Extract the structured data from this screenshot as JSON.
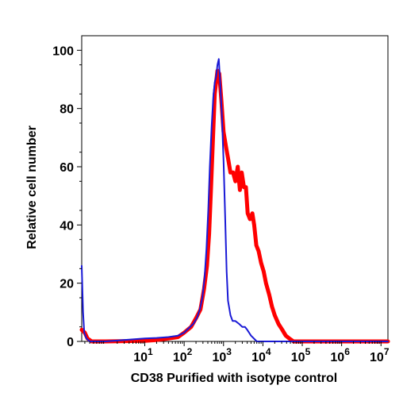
{
  "chart_data": {
    "type": "line",
    "title": "",
    "xlabel": "CD38 Purified with isotype control",
    "ylabel": "Relative cell number",
    "x_scale": "log",
    "xlim": [
      0.25,
      15000000
    ],
    "ylim": [
      0,
      105
    ],
    "y_ticks": [
      0,
      20,
      40,
      60,
      80,
      100
    ],
    "y_tick_labels": [
      "0",
      "20",
      "40",
      "60",
      "80",
      "100"
    ],
    "x_ticks": [
      10,
      100,
      1000,
      10000,
      100000,
      1000000,
      10000000
    ],
    "x_tick_labels": [
      {
        "base": "10",
        "exp": "1"
      },
      {
        "base": "10",
        "exp": "2"
      },
      {
        "base": "10",
        "exp": "3"
      },
      {
        "base": "10",
        "exp": "4"
      },
      {
        "base": "10",
        "exp": "5"
      },
      {
        "base": "10",
        "exp": "6"
      },
      {
        "base": "10",
        "exp": "7"
      }
    ],
    "grid": false,
    "legend": null,
    "series": [
      {
        "color": "#ff0000",
        "style": "thick",
        "x": [
          0.25,
          0.3,
          0.35,
          0.45,
          1,
          10,
          20,
          40,
          70,
          100,
          150,
          200,
          260,
          320,
          380,
          430,
          480,
          540,
          600,
          700,
          780,
          880,
          1000,
          1150,
          1300,
          1500,
          1750,
          2000,
          2300,
          2600,
          2900,
          3300,
          3700,
          4100,
          4700,
          5400,
          6000,
          6800,
          7800,
          9000,
          10500,
          12000,
          14500,
          17000,
          20000,
          25000,
          31000,
          38000,
          47000,
          60000,
          100000,
          1000000,
          15000000
        ],
        "y": [
          4,
          3,
          1,
          0,
          0,
          0.2,
          0.5,
          1,
          1.5,
          3,
          5,
          8,
          11,
          18,
          26,
          37,
          52,
          70,
          85,
          93,
          92,
          83,
          72,
          67,
          63,
          58,
          58,
          55,
          60,
          52,
          58,
          53,
          53,
          44,
          42,
          44,
          40,
          33,
          31,
          27,
          24,
          20,
          16,
          12,
          9,
          6,
          4,
          2,
          1,
          0,
          0,
          0,
          0
        ]
      },
      {
        "color": "#1a1ad6",
        "style": "thin",
        "x": [
          0.25,
          0.27,
          0.29,
          0.33,
          0.4,
          0.6,
          1,
          10,
          20,
          40,
          70,
          100,
          130,
          170,
          210,
          250,
          290,
          330,
          370,
          410,
          450,
          500,
          550,
          600,
          650,
          700,
          760,
          800,
          900,
          1000,
          1100,
          1200,
          1300,
          1500,
          1700,
          2000,
          2500,
          3000,
          3500,
          4000,
          5000,
          7000,
          10000,
          1000000,
          15000000
        ],
        "y": [
          26,
          10,
          3,
          1,
          0,
          0,
          0,
          1,
          1.2,
          1.5,
          2,
          3,
          4.5,
          6,
          8,
          11,
          15,
          22,
          32,
          45,
          60,
          74,
          84,
          89,
          91,
          95,
          97,
          92,
          79,
          62,
          43,
          24,
          14,
          9,
          7,
          7,
          6,
          5,
          5,
          4,
          2,
          0,
          0,
          0,
          0
        ]
      }
    ]
  }
}
